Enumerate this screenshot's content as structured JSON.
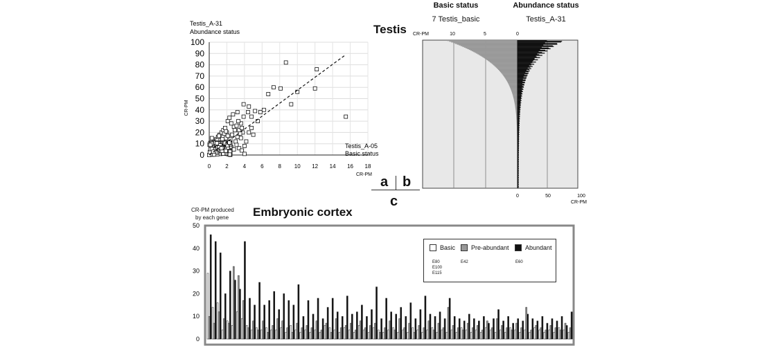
{
  "chart_data": [
    {
      "type": "scatter",
      "panel": "a",
      "title_lines": [
        "Testis_A-31",
        "Abundance status"
      ],
      "ylabel": "CR-PM",
      "x_title_lines": [
        "Testis_A-05",
        "Basic status"
      ],
      "xunit": "CR-PM",
      "xlim": [
        0,
        18
      ],
      "ylim": [
        0,
        100
      ],
      "xticks": [
        "0",
        "2",
        "4",
        "6",
        "8",
        "10",
        "12",
        "14",
        "16",
        "18"
      ],
      "yticks": [
        "0",
        "10",
        "20",
        "30",
        "40",
        "50",
        "60",
        "70",
        "80",
        "90",
        "100"
      ],
      "trendline": {
        "style": "dashed",
        "from": [
          0,
          0
        ],
        "to": [
          15.5,
          89
        ]
      },
      "points": [
        [
          0.1,
          1
        ],
        [
          0.2,
          3
        ],
        [
          0.3,
          2
        ],
        [
          0.4,
          5
        ],
        [
          0.5,
          1
        ],
        [
          0.6,
          4
        ],
        [
          0.7,
          2
        ],
        [
          0.8,
          6
        ],
        [
          0.9,
          3
        ],
        [
          1.0,
          8
        ],
        [
          1.1,
          2
        ],
        [
          1.2,
          5
        ],
        [
          1.3,
          10
        ],
        [
          1.4,
          4
        ],
        [
          1.5,
          7
        ],
        [
          1.6,
          12
        ],
        [
          1.7,
          3
        ],
        [
          1.8,
          9
        ],
        [
          1.9,
          15
        ],
        [
          2.0,
          6
        ],
        [
          0.2,
          8
        ],
        [
          0.4,
          10
        ],
        [
          0.6,
          12
        ],
        [
          0.8,
          14
        ],
        [
          1.0,
          16
        ],
        [
          1.2,
          18
        ],
        [
          1.4,
          20
        ],
        [
          1.6,
          22
        ],
        [
          1.8,
          24
        ],
        [
          2.0,
          20
        ],
        [
          2.2,
          10
        ],
        [
          2.4,
          14
        ],
        [
          2.6,
          18
        ],
        [
          2.8,
          25
        ],
        [
          3.0,
          12
        ],
        [
          3.2,
          16
        ],
        [
          3.4,
          22
        ],
        [
          3.6,
          28
        ],
        [
          3.8,
          20
        ],
        [
          4.0,
          8
        ],
        [
          2.1,
          30
        ],
        [
          2.3,
          33
        ],
        [
          2.5,
          28
        ],
        [
          2.7,
          36
        ],
        [
          2.9,
          22
        ],
        [
          3.1,
          26
        ],
        [
          3.3,
          30
        ],
        [
          3.5,
          19
        ],
        [
          3.7,
          24
        ],
        [
          3.9,
          34
        ],
        [
          0.3,
          15
        ],
        [
          0.5,
          11
        ],
        [
          0.7,
          9
        ],
        [
          0.9,
          13
        ],
        [
          1.1,
          17
        ],
        [
          1.3,
          6
        ],
        [
          1.5,
          14
        ],
        [
          1.7,
          19
        ],
        [
          1.9,
          21
        ],
        [
          2.1,
          17
        ],
        [
          2.2,
          4
        ],
        [
          2.5,
          7
        ],
        [
          2.8,
          5
        ],
        [
          3.1,
          9
        ],
        [
          3.4,
          6
        ],
        [
          3.7,
          4
        ],
        [
          4.2,
          12
        ],
        [
          4.5,
          20
        ],
        [
          4.8,
          24
        ],
        [
          5.0,
          18
        ],
        [
          4.4,
          38
        ],
        [
          4.8,
          34
        ],
        [
          5.2,
          39
        ],
        [
          5.5,
          30
        ],
        [
          5.8,
          38
        ],
        [
          6.2,
          40
        ],
        [
          3.9,
          45
        ],
        [
          4.5,
          43
        ],
        [
          3.2,
          38
        ],
        [
          3.6,
          15
        ],
        [
          6.7,
          54
        ],
        [
          7.3,
          60
        ],
        [
          8.1,
          59
        ],
        [
          9.3,
          45
        ],
        [
          10.0,
          56
        ],
        [
          12.0,
          59
        ],
        [
          12.2,
          76
        ],
        [
          8.7,
          82
        ],
        [
          15.5,
          34
        ],
        [
          4.0,
          1
        ]
      ]
    },
    {
      "type": "bar",
      "panel": "b",
      "title": "Testis",
      "header_left": "Basic status",
      "subheader_left": "7 Testis_basic",
      "header_right": "Abundance status",
      "subheader_right": "Testis_A-31",
      "top_axis_label": "CR-PM",
      "top_ticks": [
        "10",
        "5",
        "0"
      ],
      "bottom_ticks": [
        "0",
        "50",
        "100"
      ],
      "bottom_axis_label": "CR-PM",
      "series": [
        {
          "color": "#999999",
          "values_peak": 11
        },
        {
          "color": "#111111",
          "values_peak": 80
        }
      ]
    },
    {
      "type": "bar",
      "panel": "c",
      "title": "Embryonic cortex",
      "ylabel_lines": [
        "CR-PM produced",
        "by each gene"
      ],
      "ylim": [
        0,
        50
      ],
      "yticks": [
        "0",
        "10",
        "20",
        "30",
        "40",
        "50"
      ],
      "legend": [
        {
          "name": "Basic",
          "color": "#ffffff"
        },
        {
          "name": "Pre-abundant",
          "color": "#999999"
        },
        {
          "name": "Abundant",
          "color": "#111111"
        }
      ],
      "legend_notes": [
        {
          "text": "E80",
          "col": 0
        },
        {
          "text": "E100",
          "col": 0
        },
        {
          "text": "E115",
          "col": 0
        },
        {
          "text": "E42",
          "col": 1
        },
        {
          "text": "E60",
          "col": 2
        }
      ],
      "groups": [
        [
          29,
          10,
          46
        ],
        [
          14,
          7,
          43
        ],
        [
          16,
          12,
          38
        ],
        [
          4,
          9,
          20
        ],
        [
          8,
          7,
          30
        ],
        [
          6,
          32,
          26
        ],
        [
          12,
          28,
          22
        ],
        [
          9,
          17,
          43
        ],
        [
          6,
          5,
          18
        ],
        [
          4,
          8,
          15
        ],
        [
          5,
          4,
          25
        ],
        [
          4,
          8,
          15
        ],
        [
          5,
          3,
          17
        ],
        [
          4,
          6,
          21
        ],
        [
          4,
          9,
          13
        ],
        [
          5,
          8,
          20
        ],
        [
          3,
          5,
          17
        ],
        [
          6,
          3,
          15
        ],
        [
          4,
          7,
          24
        ],
        [
          3,
          5,
          10
        ],
        [
          4,
          6,
          17
        ],
        [
          3,
          5,
          11
        ],
        [
          4,
          8,
          18
        ],
        [
          3,
          4,
          9
        ],
        [
          6,
          7,
          14
        ],
        [
          5,
          3,
          18
        ],
        [
          4,
          9,
          12
        ],
        [
          3,
          5,
          10
        ],
        [
          5,
          6,
          19
        ],
        [
          4,
          7,
          11
        ],
        [
          3,
          4,
          12
        ],
        [
          6,
          8,
          15
        ],
        [
          4,
          5,
          10
        ],
        [
          3,
          6,
          13
        ],
        [
          5,
          7,
          23
        ],
        [
          4,
          3,
          9
        ],
        [
          3,
          5,
          18
        ],
        [
          4,
          8,
          12
        ],
        [
          5,
          4,
          11
        ],
        [
          3,
          9,
          14
        ],
        [
          4,
          5,
          10
        ],
        [
          3,
          7,
          16
        ],
        [
          5,
          3,
          9
        ],
        [
          4,
          6,
          13
        ],
        [
          3,
          5,
          19
        ],
        [
          4,
          8,
          11
        ],
        [
          5,
          4,
          10
        ],
        [
          3,
          7,
          12
        ],
        [
          4,
          5,
          9
        ],
        [
          3,
          14,
          18
        ],
        [
          4,
          6,
          10
        ],
        [
          3,
          5,
          9
        ],
        [
          5,
          4,
          8
        ],
        [
          4,
          7,
          11
        ],
        [
          3,
          5,
          9
        ],
        [
          4,
          6,
          8
        ],
        [
          3,
          4,
          10
        ],
        [
          5,
          8,
          7
        ],
        [
          4,
          5,
          9
        ],
        [
          3,
          9,
          13
        ],
        [
          4,
          6,
          8
        ],
        [
          3,
          5,
          10
        ],
        [
          5,
          4,
          7
        ],
        [
          4,
          7,
          9
        ],
        [
          3,
          5,
          8
        ],
        [
          4,
          14,
          11
        ],
        [
          3,
          4,
          9
        ],
        [
          5,
          6,
          8
        ],
        [
          4,
          5,
          10
        ],
        [
          3,
          4,
          7
        ],
        [
          4,
          6,
          9
        ],
        [
          3,
          5,
          8
        ],
        [
          5,
          4,
          10
        ],
        [
          4,
          7,
          6
        ],
        [
          3,
          5,
          12
        ]
      ]
    }
  ],
  "labels": {
    "panel_a": "a",
    "panel_b": "b",
    "panel_c": "c"
  }
}
